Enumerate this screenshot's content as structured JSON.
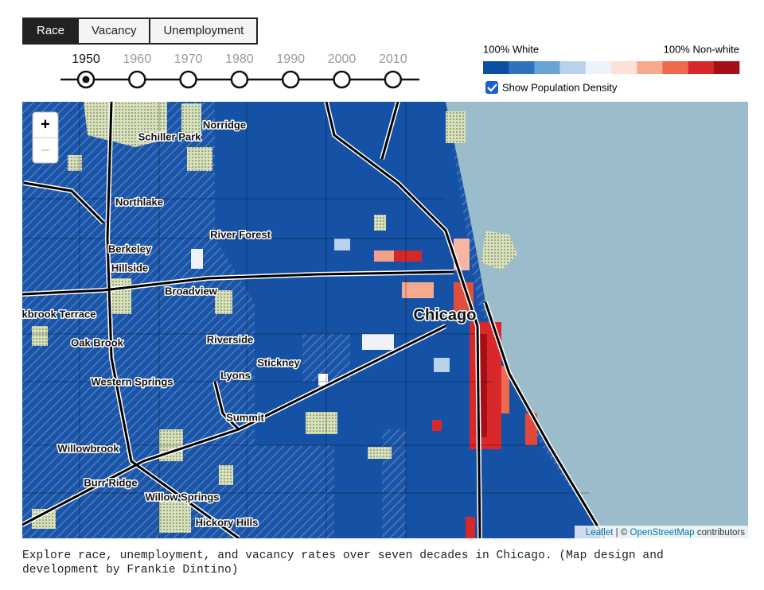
{
  "tabs": [
    "Race",
    "Vacancy",
    "Unemployment"
  ],
  "years": [
    "1950",
    "1960",
    "1970",
    "1980",
    "1990",
    "2000",
    "2010"
  ],
  "legend": {
    "left": "100% White",
    "right": "100% Non-white",
    "colors": [
      "#0d4fa3",
      "#2f73bc",
      "#6aa3d6",
      "#b7d2ea",
      "#eef3fb",
      "#fde0d6",
      "#f7a98e",
      "#ef6a4c",
      "#d8282b",
      "#a50f15"
    ]
  },
  "checkbox_label": "Show Population Density",
  "zoom": [
    "+",
    "−"
  ],
  "map_labels": [
    "Norridge",
    "Schiller Park",
    "Northlake",
    "River Forest",
    "Berkeley",
    "Hillside",
    "Broadview",
    "kbrook Terrace",
    "Chicago",
    "Oak Brook",
    "Riverside",
    "Stickney",
    "Lyons",
    "Western Springs",
    "Summit",
    "Willowbrook",
    "Burr Ridge",
    "Willow Springs",
    "Hickory Hills"
  ],
  "attribution": [
    "Leaflet",
    "| ©",
    "OpenStreetMap",
    "contributors"
  ],
  "caption": "Explore race, unemployment, and vacancy rates over seven decades in Chicago. (Map design and development by Frankie Dintino)"
}
